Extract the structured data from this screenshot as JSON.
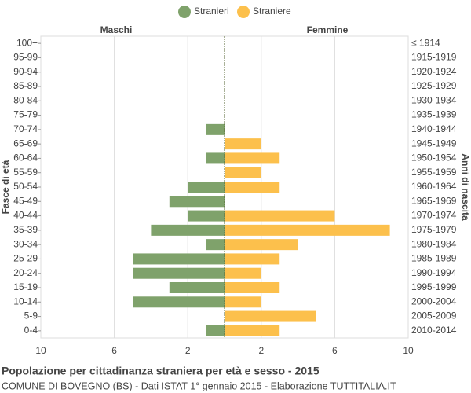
{
  "chart_data": {
    "type": "pyramid",
    "title": "Popolazione per cittadinanza straniera per età e sesso - 2015",
    "subtitle": "COMUNE DI BOVEGNO (BS) - Dati ISTAT 1° gennaio 2015 - Elaborazione TUTTITALIA.IT",
    "left_label": "Maschi",
    "right_label": "Femmine",
    "y_label": "Fasce di età",
    "y2_label": "Anni di nascita",
    "categories": [
      "100+",
      "95-99",
      "90-94",
      "85-89",
      "80-84",
      "75-79",
      "70-74",
      "65-69",
      "60-64",
      "55-59",
      "50-54",
      "45-49",
      "40-44",
      "35-39",
      "30-34",
      "25-29",
      "20-24",
      "15-19",
      "10-14",
      "5-9",
      "0-4"
    ],
    "birth_years": [
      "≤ 1914",
      "1915-1919",
      "1920-1924",
      "1925-1929",
      "1930-1934",
      "1935-1939",
      "1940-1944",
      "1945-1949",
      "1950-1954",
      "1955-1959",
      "1960-1964",
      "1965-1969",
      "1970-1974",
      "1975-1979",
      "1980-1984",
      "1985-1989",
      "1990-1994",
      "1995-1999",
      "2000-2004",
      "2005-2009",
      "2010-2014"
    ],
    "series": [
      {
        "name": "Stranieri",
        "color": "#7fa26b",
        "side": "left",
        "values": [
          0,
          0,
          0,
          0,
          0,
          0,
          1,
          0,
          1,
          0,
          2,
          3,
          2,
          4,
          1,
          5,
          5,
          3,
          5,
          0,
          1
        ]
      },
      {
        "name": "Straniere",
        "color": "#fcc04c",
        "side": "right",
        "values": [
          0,
          0,
          0,
          0,
          0,
          0,
          0,
          2,
          3,
          2,
          3,
          0,
          6,
          9,
          4,
          3,
          2,
          3,
          2,
          5,
          3
        ]
      }
    ],
    "xlim": [
      -10,
      10
    ],
    "xticks": [
      {
        "value": -10,
        "label": "10"
      },
      {
        "value": -6,
        "label": "6"
      },
      {
        "value": -2,
        "label": "2"
      },
      2,
      6,
      10
    ],
    "grid": true
  }
}
